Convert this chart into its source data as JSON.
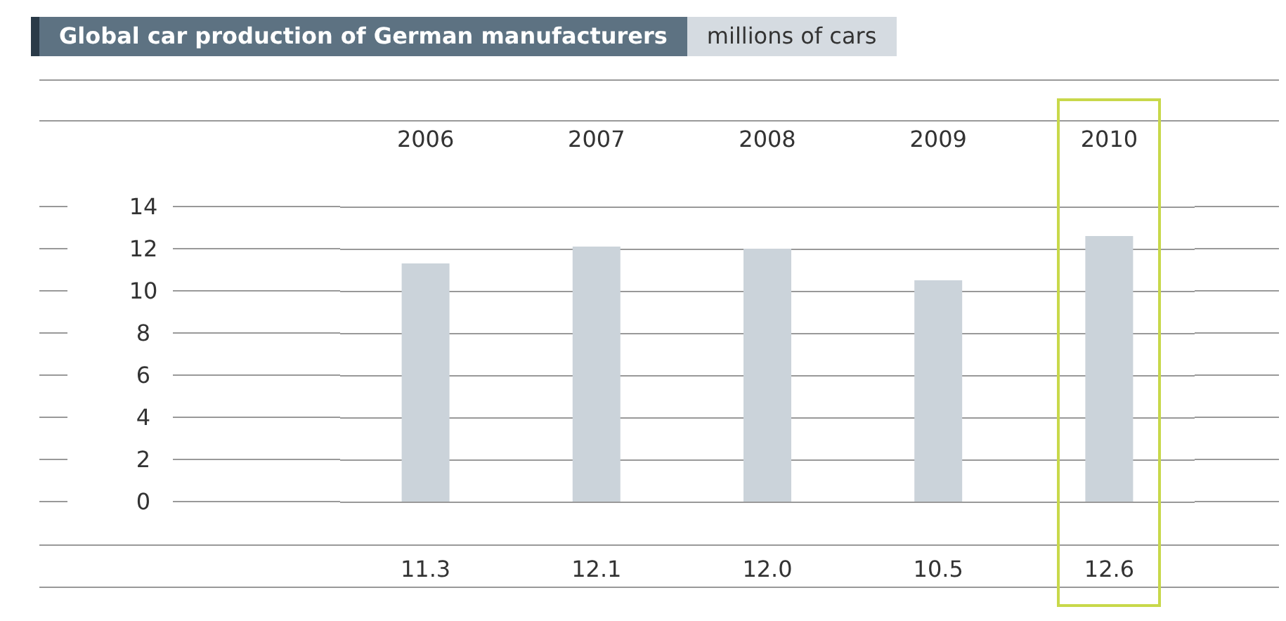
{
  "chart_data": {
    "type": "bar",
    "title": "Global car production of German manufacturers",
    "subtitle": "millions of cars",
    "categories": [
      "2006",
      "2007",
      "2008",
      "2009",
      "2010"
    ],
    "values": [
      11.3,
      12.1,
      12.0,
      10.5,
      12.6
    ],
    "color": "#cbd3da",
    "ylim": [
      0,
      14
    ],
    "yticks": [
      0,
      2,
      4,
      6,
      8,
      10,
      12,
      14
    ],
    "grid": "y",
    "value_labels": [
      "11.3",
      "12.1",
      "12.0",
      "10.5",
      "12.6"
    ]
  }
}
